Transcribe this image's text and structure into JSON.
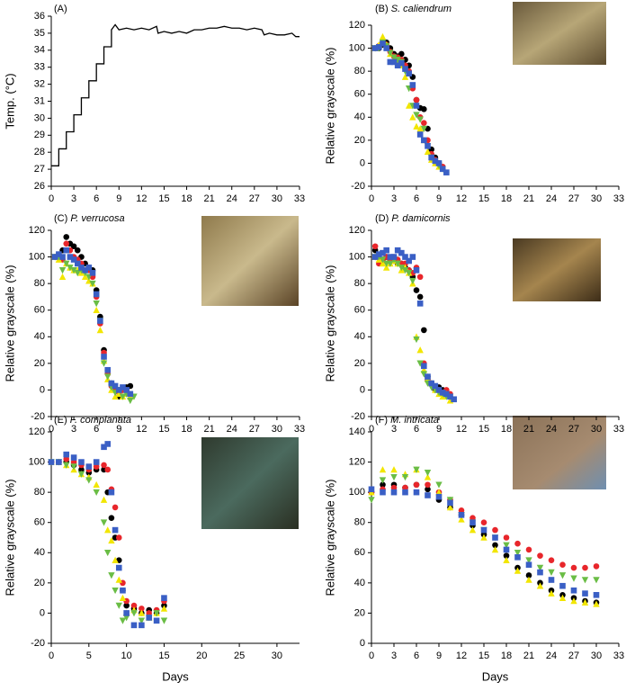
{
  "chart_data": [
    {
      "type": "line",
      "panel_label": "(A)",
      "ylabel": "Temp. (°C)",
      "color": "#000000",
      "x": [
        0,
        1,
        1,
        2,
        2,
        3,
        3,
        4,
        4,
        5,
        5,
        6,
        6,
        7,
        7,
        8,
        8,
        8.5,
        9,
        10,
        11,
        12,
        13,
        14,
        14.2,
        15,
        16,
        17,
        18,
        19,
        20,
        21,
        22,
        23,
        24,
        25,
        26,
        27,
        28,
        28.3,
        29,
        30,
        31,
        32,
        32.5,
        33
      ],
      "values": [
        27.2,
        27.2,
        28.2,
        28.2,
        29.2,
        29.2,
        30.2,
        30.2,
        31.2,
        31.2,
        32.2,
        32.2,
        33.2,
        33.2,
        34.2,
        34.2,
        35.2,
        35.5,
        35.2,
        35.3,
        35.2,
        35.3,
        35.2,
        35.4,
        35.0,
        35.1,
        35.0,
        35.1,
        35.0,
        35.2,
        35.2,
        35.3,
        35.3,
        35.4,
        35.3,
        35.3,
        35.2,
        35.3,
        35.2,
        34.9,
        35.0,
        34.9,
        34.9,
        35.0,
        34.8,
        34.8
      ],
      "xlim": [
        0,
        33
      ],
      "xticks": [
        0,
        3,
        6,
        9,
        12,
        15,
        18,
        21,
        24,
        27,
        30,
        33
      ],
      "ylim": [
        26,
        36
      ],
      "yticks": [
        26,
        27,
        28,
        29,
        30,
        31,
        32,
        33,
        34,
        35,
        36
      ]
    },
    {
      "type": "scatter",
      "panel_label": "(B)",
      "title": "S. caliendrum",
      "ylabel": "Relative grayscale (%)",
      "x": [
        0.5,
        1,
        1.5,
        2,
        2.5,
        3,
        3.5,
        4,
        4.5,
        5,
        5.5,
        6,
        6.5,
        7,
        7.5,
        8,
        8.5,
        9,
        9.5,
        10
      ],
      "series": [
        {
          "color": "#000000",
          "marker": "circle",
          "values": [
            100,
            100,
            103,
            105,
            100,
            95,
            93,
            95,
            90,
            85,
            75,
            55,
            48,
            47,
            30,
            12,
            5,
            0,
            -5,
            null
          ]
        },
        {
          "color": "#e8262b",
          "marker": "circle",
          "values": [
            100,
            102,
            105,
            103,
            97,
            93,
            92,
            90,
            85,
            80,
            65,
            55,
            40,
            35,
            20,
            8,
            3,
            0,
            -3,
            null
          ]
        },
        {
          "color": "#f2e600",
          "marker": "triangle",
          "values": [
            100,
            103,
            110,
            103,
            95,
            90,
            88,
            85,
            75,
            50,
            40,
            32,
            30,
            20,
            10,
            3,
            0,
            -3,
            null,
            null
          ]
        },
        {
          "color": "#6abd45",
          "marker": "triangle-down",
          "values": [
            100,
            100,
            105,
            102,
            96,
            92,
            90,
            88,
            80,
            65,
            50,
            42,
            38,
            30,
            15,
            5,
            2,
            -2,
            -5,
            null
          ]
        },
        {
          "color": "#3a5fc5",
          "marker": "square",
          "values": [
            100,
            101,
            104,
            100,
            88,
            88,
            85,
            87,
            82,
            78,
            68,
            50,
            25,
            20,
            15,
            5,
            2,
            0,
            -5,
            -8
          ]
        }
      ],
      "xlim": [
        0,
        33
      ],
      "xticks": [
        0,
        3,
        6,
        9,
        12,
        15,
        18,
        21,
        24,
        27,
        30,
        33
      ],
      "ylim": [
        -20,
        120
      ],
      "yticks": [
        -20,
        0,
        20,
        40,
        60,
        80,
        100,
        120
      ]
    },
    {
      "type": "scatter",
      "panel_label": "(C)",
      "title": "P. verrucosa",
      "ylabel": "Relative grayscale (%)",
      "x": [
        0.5,
        1,
        1.5,
        2,
        2.5,
        3,
        3.5,
        4,
        4.5,
        5,
        5.5,
        6,
        6.5,
        7,
        7.5,
        8,
        8.5,
        9,
        9.5,
        10,
        10.5,
        11
      ],
      "series": [
        {
          "color": "#000000",
          "marker": "circle",
          "values": [
            100,
            100,
            105,
            115,
            110,
            108,
            105,
            100,
            95,
            92,
            90,
            75,
            55,
            30,
            15,
            5,
            0,
            -5,
            0,
            2,
            3,
            null
          ]
        },
        {
          "color": "#e8262b",
          "marker": "circle",
          "values": [
            100,
            102,
            98,
            110,
            105,
            100,
            98,
            95,
            90,
            90,
            85,
            70,
            50,
            28,
            12,
            3,
            0,
            -2,
            0,
            0,
            -3,
            null
          ]
        },
        {
          "color": "#f2e600",
          "marker": "triangle",
          "values": [
            100,
            98,
            85,
            95,
            92,
            90,
            90,
            88,
            85,
            82,
            80,
            60,
            45,
            22,
            8,
            0,
            -5,
            -3,
            -5,
            -3,
            -5,
            null
          ]
        },
        {
          "color": "#6abd45",
          "marker": "triangle-down",
          "values": [
            100,
            100,
            90,
            95,
            92,
            90,
            88,
            90,
            88,
            85,
            80,
            65,
            52,
            20,
            10,
            2,
            -2,
            0,
            -5,
            -3,
            -8,
            -5
          ]
        },
        {
          "color": "#3a5fc5",
          "marker": "square",
          "values": [
            100,
            102,
            100,
            105,
            100,
            98,
            95,
            92,
            90,
            92,
            88,
            72,
            52,
            25,
            15,
            5,
            3,
            0,
            2,
            0,
            -3,
            null
          ]
        }
      ],
      "xlim": [
        0,
        33
      ],
      "xticks": [
        0,
        3,
        6,
        9,
        12,
        15,
        18,
        21,
        24,
        27,
        30,
        33
      ],
      "ylim": [
        -20,
        120
      ],
      "yticks": [
        -20,
        0,
        20,
        40,
        60,
        80,
        100,
        120
      ]
    },
    {
      "type": "scatter",
      "panel_label": "(D)",
      "title": "P. damicornis",
      "ylabel": "Relative grayscale (%)",
      "x": [
        0.5,
        1,
        1.5,
        2,
        2.5,
        3,
        3.5,
        4,
        4.5,
        5,
        5.5,
        6,
        6.5,
        7,
        7.5,
        8,
        8.5,
        9,
        9.5,
        10,
        10.5,
        11
      ],
      "series": [
        {
          "color": "#000000",
          "marker": "circle",
          "values": [
            105,
            100,
            98,
            100,
            98,
            97,
            95,
            95,
            92,
            90,
            85,
            75,
            70,
            45,
            10,
            5,
            0,
            2,
            0,
            -3,
            -5,
            null
          ]
        },
        {
          "color": "#e8262b",
          "marker": "circle",
          "values": [
            108,
            95,
            97,
            100,
            97,
            100,
            98,
            95,
            95,
            90,
            88,
            92,
            85,
            20,
            8,
            5,
            2,
            0,
            -2,
            0,
            -3,
            null
          ]
        },
        {
          "color": "#f2e600",
          "marker": "triangle",
          "values": [
            100,
            98,
            95,
            92,
            95,
            97,
            95,
            90,
            92,
            88,
            80,
            40,
            30,
            15,
            8,
            5,
            0,
            -3,
            -5,
            -3,
            -8,
            null
          ]
        },
        {
          "color": "#6abd45",
          "marker": "triangle-down",
          "values": [
            100,
            100,
            98,
            95,
            95,
            98,
            95,
            92,
            90,
            88,
            82,
            38,
            20,
            12,
            5,
            2,
            0,
            -2,
            -3,
            -5,
            -5,
            null
          ]
        },
        {
          "color": "#3a5fc5",
          "marker": "square",
          "values": [
            100,
            102,
            103,
            105,
            100,
            100,
            105,
            103,
            100,
            97,
            100,
            90,
            65,
            18,
            10,
            5,
            3,
            0,
            -2,
            -3,
            -5,
            -7
          ]
        }
      ],
      "xlim": [
        0,
        33
      ],
      "xticks": [
        0,
        3,
        6,
        9,
        12,
        15,
        18,
        21,
        24,
        27,
        30,
        33
      ],
      "ylim": [
        -20,
        120
      ],
      "yticks": [
        -20,
        0,
        20,
        40,
        60,
        80,
        100,
        120
      ]
    },
    {
      "type": "scatter",
      "panel_label": "(E)",
      "title": "F. complanata",
      "ylabel": "Relative grayscale (%)",
      "xlabel": "Days",
      "x": [
        0,
        1,
        2,
        3,
        4,
        5,
        6,
        7,
        7.5,
        8,
        8.5,
        9,
        9.5,
        10,
        11,
        12,
        13,
        14,
        15
      ],
      "series": [
        {
          "color": "#000000",
          "marker": "circle",
          "values": [
            100,
            100,
            100,
            98,
            95,
            93,
            95,
            95,
            80,
            63,
            50,
            35,
            15,
            5,
            3,
            0,
            2,
            0,
            5
          ]
        },
        {
          "color": "#e8262b",
          "marker": "circle",
          "values": [
            100,
            100,
            102,
            100,
            98,
            95,
            97,
            98,
            95,
            82,
            70,
            50,
            20,
            8,
            5,
            3,
            0,
            2,
            8
          ]
        },
        {
          "color": "#f2e600",
          "marker": "triangle",
          "values": [
            100,
            100,
            98,
            95,
            92,
            90,
            85,
            75,
            55,
            48,
            35,
            22,
            10,
            0,
            2,
            0,
            -3,
            0,
            3
          ]
        },
        {
          "color": "#6abd45",
          "marker": "triangle-down",
          "values": [
            100,
            100,
            98,
            97,
            92,
            88,
            80,
            60,
            40,
            25,
            15,
            5,
            -5,
            -3,
            0,
            -5,
            -3,
            0,
            -5
          ]
        },
        {
          "color": "#3a5fc5",
          "marker": "square",
          "values": [
            100,
            100,
            105,
            103,
            100,
            97,
            100,
            110,
            112,
            80,
            55,
            30,
            15,
            0,
            -8,
            -8,
            -3,
            -5,
            10
          ]
        }
      ],
      "xlim": [
        0,
        33
      ],
      "xticks": [
        0,
        5,
        10,
        15,
        20,
        25,
        30
      ],
      "ylim": [
        -20,
        120
      ],
      "yticks": [
        -20,
        0,
        20,
        40,
        60,
        80,
        100,
        120
      ]
    },
    {
      "type": "scatter",
      "panel_label": "(F)",
      "title": "M. intricata",
      "ylabel": "Relative grayscale (%)",
      "xlabel": "Days",
      "x": [
        0,
        1.5,
        3,
        4.5,
        6,
        7.5,
        9,
        10.5,
        12,
        13.5,
        15,
        16.5,
        18,
        19.5,
        21,
        22.5,
        24,
        25.5,
        27,
        28.5,
        30
      ],
      "series": [
        {
          "color": "#000000",
          "marker": "circle",
          "values": [
            100,
            105,
            105,
            103,
            105,
            102,
            95,
            90,
            85,
            78,
            72,
            65,
            58,
            50,
            45,
            40,
            35,
            32,
            30,
            28,
            27
          ]
        },
        {
          "color": "#e8262b",
          "marker": "circle",
          "values": [
            100,
            102,
            103,
            103,
            105,
            105,
            100,
            95,
            88,
            83,
            80,
            75,
            70,
            66,
            62,
            58,
            55,
            52,
            50,
            50,
            51
          ]
        },
        {
          "color": "#f2e600",
          "marker": "triangle",
          "values": [
            100,
            115,
            115,
            112,
            115,
            110,
            100,
            90,
            82,
            75,
            70,
            62,
            55,
            48,
            42,
            38,
            33,
            30,
            28,
            27,
            26
          ]
        },
        {
          "color": "#6abd45",
          "marker": "triangle-down",
          "values": [
            95,
            108,
            110,
            110,
            115,
            113,
            105,
            95,
            85,
            80,
            75,
            70,
            65,
            60,
            55,
            50,
            47,
            45,
            43,
            42,
            42
          ]
        },
        {
          "color": "#3a5fc5",
          "marker": "square",
          "values": [
            102,
            100,
            100,
            100,
            100,
            98,
            97,
            93,
            85,
            80,
            75,
            70,
            62,
            57,
            52,
            47,
            42,
            38,
            35,
            33,
            32
          ]
        }
      ],
      "xlim": [
        0,
        33
      ],
      "xticks": [
        0,
        3,
        6,
        9,
        12,
        15,
        18,
        21,
        24,
        27,
        30,
        33
      ],
      "ylim": [
        0,
        140
      ],
      "yticks": [
        0,
        20,
        40,
        60,
        80,
        100,
        120,
        140
      ]
    }
  ]
}
